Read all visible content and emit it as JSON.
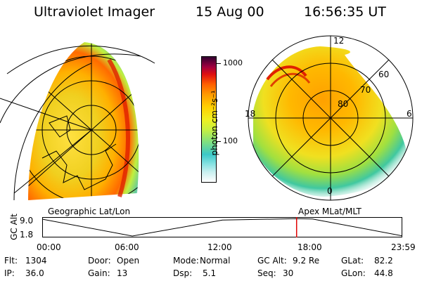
{
  "header": {
    "instrument": "Ultraviolet Imager",
    "date": "15 Aug 00",
    "time": "16:56:35 UT"
  },
  "colorbar": {
    "unit_label": "photon cm⁻²s⁻¹",
    "ticks": [
      "1000",
      "100"
    ]
  },
  "left_panel": {
    "caption": "Geographic Lat/Lon"
  },
  "right_panel": {
    "caption": "Apex MLat/MLT",
    "mlt_labels": {
      "top": "12",
      "left": "18",
      "right": "6",
      "bottom": "0"
    },
    "mlat_labels": [
      "60",
      "70",
      "80"
    ]
  },
  "altitude_plot": {
    "label": "GC Alt",
    "y_ticks": [
      "9.0",
      "1.8"
    ],
    "x_ticks": [
      "00:00",
      "06:00",
      "12:00",
      "18:00",
      "23:59"
    ],
    "marker_time": "16:56:35",
    "marker_color": "#e00000",
    "chart_data": {
      "type": "line",
      "x": [
        "00:00",
        "06:00",
        "12:00",
        "16:56",
        "18:00",
        "23:59"
      ],
      "y": [
        9.0,
        1.8,
        8.6,
        9.2,
        9.1,
        1.9
      ],
      "ylim": [
        1.8,
        9.0
      ],
      "ylabel": "GC Alt"
    }
  },
  "status": {
    "row1": [
      {
        "label": "Flt:",
        "value": "1304"
      },
      {
        "label": "Door:",
        "value": "Open"
      },
      {
        "label": "Mode:",
        "value": "Normal"
      },
      {
        "label": "GC Alt:",
        "value": "9.2 Re"
      },
      {
        "label": "GLat:",
        "value": "82.2"
      }
    ],
    "row2": [
      {
        "label": "IP:",
        "value": "36.0"
      },
      {
        "label": "Gain:",
        "value": "13"
      },
      {
        "label": "Dsp:",
        "value": "5.1"
      },
      {
        "label": "Seq:",
        "value": "30"
      },
      {
        "label": "GLon:",
        "value": "44.8"
      }
    ]
  }
}
